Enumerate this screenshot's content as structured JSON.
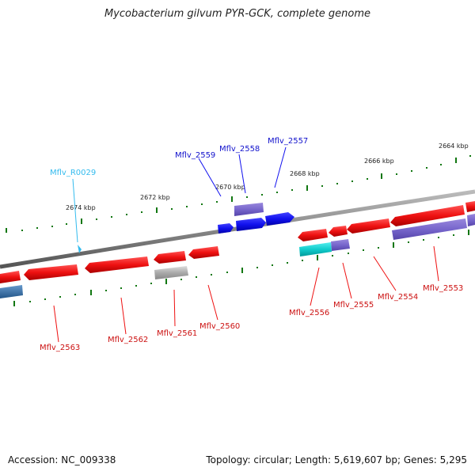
{
  "title": "Mycobacterium gilvum PYR-GCK, complete genome",
  "footer": {
    "accession": "Accession: NC_009338",
    "summary": "Topology: circular; Length: 5,619,607 bp; Genes: 5,295"
  },
  "scale_labels": [
    "2674 kbp",
    "2672 kbp",
    "2670 kbp",
    "2668 kbp",
    "2666 kbp",
    "2664 kbp"
  ],
  "colors": {
    "red_gene": "#ee1111",
    "blue_gene": "#1111ee",
    "purple_gene": "#7766cc",
    "cyan_gene": "#11cccc",
    "grey_gene": "#aaaaaa",
    "steel_gene": "#4477aa",
    "light_blue_gene": "#33bbee",
    "backbone": "#888888",
    "tick": "#117711"
  },
  "gene_labels": {
    "top": [
      "Mflv_R0029",
      "Mflv_2559",
      "Mflv_2558",
      "Mflv_2557"
    ],
    "bottom": [
      "Mflv_2563",
      "Mflv_2562",
      "Mflv_2561",
      "Mflv_2560",
      "Mflv_2556",
      "Mflv_2555",
      "Mflv_2554",
      "Mflv_2553"
    ]
  }
}
